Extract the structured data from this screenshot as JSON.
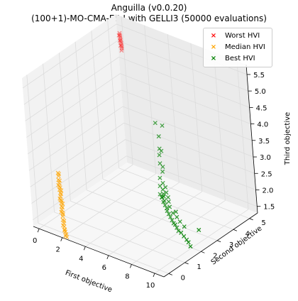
{
  "chart_data": {
    "type": "scatter",
    "projection": "3d",
    "title": "Anguilla (v0.0.20)",
    "subtitle": "(100+1)-MO-CMA-ES-I with GELLI3 (50000 evaluations)",
    "xlabel": "First objective",
    "ylabel": "Second objective",
    "zlabel": "Third objective",
    "xticks": [
      "0",
      "2",
      "4",
      "6",
      "8",
      "10"
    ],
    "yticks": [
      "0",
      "1",
      "2",
      "3",
      "4",
      "5"
    ],
    "zticks": [
      "1.5",
      "2.0",
      "2.5",
      "3.0",
      "3.5",
      "4.0",
      "4.5",
      "5.0",
      "5.5"
    ],
    "xlim": [
      -0.5,
      10.8
    ],
    "ylim": [
      -0.3,
      5.5
    ],
    "zlim": [
      1.3,
      5.8
    ],
    "legend_position": "top-right",
    "grid": true,
    "series": [
      {
        "name": "Worst HVI",
        "color": "#ff0000",
        "marker": "x",
        "points": [
          [
            0.55,
            4.95,
            5.55
          ],
          [
            0.56,
            4.95,
            5.5
          ],
          [
            0.57,
            4.96,
            5.45
          ],
          [
            0.58,
            4.95,
            5.4
          ],
          [
            0.59,
            4.96,
            5.35
          ],
          [
            0.6,
            4.95,
            5.3
          ],
          [
            0.62,
            4.96,
            5.25
          ],
          [
            0.63,
            4.95,
            5.2
          ],
          [
            0.64,
            4.96,
            5.15
          ],
          [
            0.65,
            4.95,
            5.1
          ],
          [
            0.55,
            4.9,
            5.5
          ],
          [
            0.6,
            4.9,
            5.35
          ],
          [
            0.63,
            4.9,
            5.2
          ],
          [
            0.66,
            4.92,
            5.05
          ]
        ]
      },
      {
        "name": "Median HVI",
        "color": "#ffa500",
        "marker": "x",
        "points": [
          [
            1.3,
            0.2,
            3.0
          ],
          [
            1.31,
            0.22,
            2.9
          ],
          [
            1.32,
            0.18,
            2.8
          ],
          [
            1.33,
            0.21,
            2.7
          ],
          [
            1.34,
            0.2,
            2.6
          ],
          [
            1.35,
            0.19,
            2.5
          ],
          [
            1.36,
            0.22,
            2.4
          ],
          [
            1.37,
            0.2,
            2.3
          ],
          [
            1.38,
            0.18,
            2.2
          ],
          [
            1.39,
            0.21,
            2.1
          ],
          [
            1.4,
            0.2,
            2.0
          ],
          [
            1.41,
            0.19,
            1.9
          ],
          [
            1.42,
            0.22,
            1.8
          ],
          [
            1.43,
            0.2,
            1.7
          ],
          [
            1.45,
            0.18,
            1.6
          ],
          [
            1.47,
            0.21,
            1.5
          ],
          [
            1.5,
            0.2,
            1.4
          ],
          [
            1.53,
            0.19,
            1.32
          ],
          [
            1.56,
            0.2,
            1.25
          ],
          [
            1.6,
            0.21,
            1.18
          ],
          [
            1.3,
            0.25,
            2.95
          ],
          [
            1.32,
            0.25,
            2.75
          ],
          [
            1.34,
            0.24,
            2.55
          ],
          [
            1.36,
            0.25,
            2.35
          ],
          [
            1.38,
            0.24,
            2.15
          ],
          [
            1.4,
            0.25,
            1.95
          ],
          [
            1.42,
            0.24,
            1.75
          ],
          [
            1.45,
            0.25,
            1.55
          ],
          [
            1.33,
            0.15,
            2.65
          ],
          [
            1.37,
            0.15,
            2.25
          ],
          [
            1.41,
            0.15,
            1.85
          ],
          [
            1.48,
            0.15,
            1.45
          ],
          [
            1.55,
            0.17,
            1.3
          ],
          [
            1.62,
            0.16,
            1.15
          ],
          [
            1.66,
            0.2,
            1.1
          ],
          [
            1.35,
            0.28,
            2.45
          ],
          [
            1.39,
            0.28,
            2.05
          ]
        ]
      },
      {
        "name": "Best HVI",
        "color": "#008000",
        "marker": "x",
        "points": [
          [
            6.0,
            3.05,
            4.2
          ],
          [
            6.6,
            3.05,
            4.2
          ],
          [
            6.3,
            3.0,
            3.85
          ],
          [
            6.35,
            2.95,
            3.5
          ],
          [
            6.3,
            2.95,
            3.3
          ],
          [
            6.5,
            2.95,
            3.45
          ],
          [
            6.45,
            2.85,
            3.1
          ],
          [
            6.6,
            2.9,
            3.0
          ],
          [
            6.7,
            2.8,
            2.9
          ],
          [
            6.5,
            2.75,
            2.7
          ],
          [
            6.8,
            2.7,
            2.6
          ],
          [
            6.6,
            2.65,
            2.5
          ],
          [
            6.9,
            2.6,
            2.45
          ],
          [
            7.0,
            2.55,
            2.35
          ],
          [
            7.1,
            2.5,
            2.3
          ],
          [
            6.8,
            2.6,
            2.2
          ],
          [
            7.2,
            2.45,
            2.2
          ],
          [
            7.3,
            2.4,
            2.1
          ],
          [
            7.5,
            2.35,
            2.05
          ],
          [
            7.6,
            2.3,
            2.0
          ],
          [
            7.8,
            2.25,
            1.95
          ],
          [
            8.0,
            2.2,
            1.9
          ],
          [
            8.2,
            2.15,
            1.85
          ],
          [
            8.4,
            2.1,
            1.8
          ],
          [
            8.6,
            2.05,
            1.8
          ],
          [
            8.8,
            2.0,
            1.75
          ],
          [
            9.0,
            1.95,
            1.7
          ],
          [
            9.3,
            1.9,
            1.7
          ],
          [
            9.6,
            1.85,
            1.65
          ],
          [
            9.9,
            1.8,
            1.6
          ],
          [
            10.2,
            1.7,
            1.6
          ],
          [
            10.5,
            1.6,
            1.55
          ],
          [
            7.0,
            2.7,
            2.5
          ],
          [
            7.2,
            2.6,
            2.4
          ],
          [
            7.4,
            2.55,
            2.3
          ],
          [
            7.1,
            2.45,
            2.15
          ],
          [
            7.7,
            2.4,
            2.1
          ],
          [
            8.1,
            2.3,
            2.0
          ],
          [
            8.5,
            2.25,
            1.95
          ],
          [
            8.9,
            2.15,
            1.9
          ],
          [
            9.4,
            2.05,
            1.85
          ],
          [
            6.7,
            2.55,
            2.3
          ],
          [
            6.9,
            2.5,
            2.25
          ],
          [
            7.5,
            2.5,
            2.2
          ],
          [
            8.3,
            2.35,
            2.05
          ],
          [
            10.9,
            1.9,
            2.0
          ]
        ]
      }
    ]
  }
}
